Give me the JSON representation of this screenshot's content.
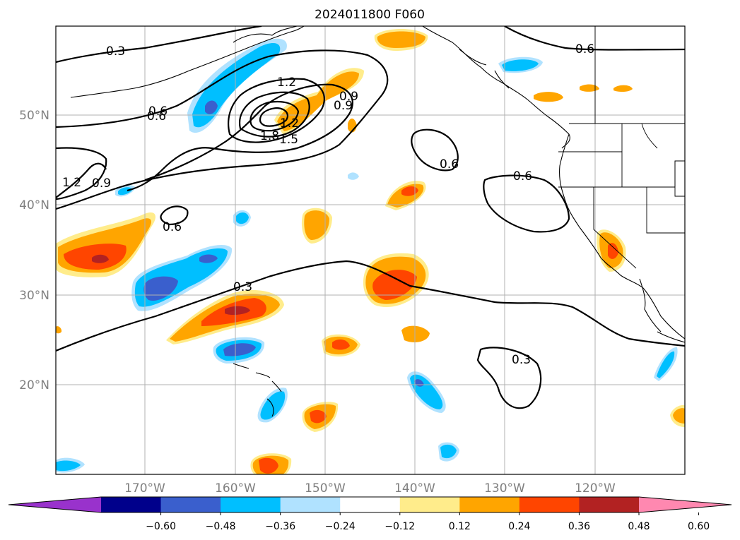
{
  "title": "2024011800 F060",
  "lat_labels": [
    "50°N",
    "40°N",
    "30°N",
    "20°N"
  ],
  "lon_labels": [
    "170°W",
    "160°W",
    "150°W",
    "140°W",
    "130°W",
    "120°W"
  ],
  "colorbar": {
    "ticks": [
      "−0.60",
      "−0.48",
      "−0.36",
      "−0.24",
      "−0.12",
      "0.12",
      "0.24",
      "0.36",
      "0.48",
      "0.60"
    ],
    "colors": [
      "#9932cc",
      "#00008b",
      "#3a5fcd",
      "#00bfff",
      "#b0e2ff",
      "#ffffff",
      "#ffec8b",
      "#ffa500",
      "#ff4500",
      "#b22222",
      "#ff88b0"
    ]
  },
  "contour_labels": [
    "0.3",
    "0.6",
    "1.2",
    "0.9",
    "0.9",
    "1.5",
    "1.8",
    "1.2",
    "0.6",
    "0.6",
    "0.6",
    "0.6",
    "1.2",
    "0.9",
    "0.6",
    "0.3",
    "0.3"
  ]
}
